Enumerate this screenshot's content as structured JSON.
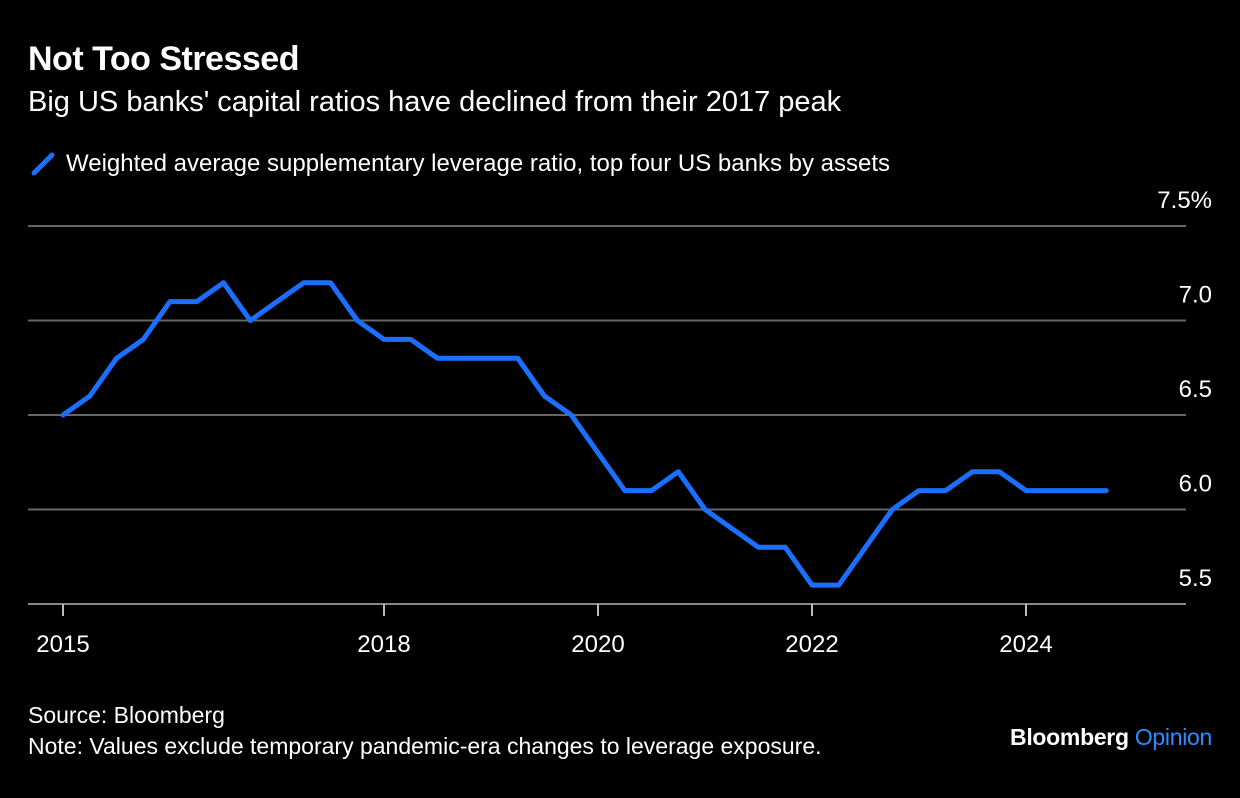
{
  "title": "Not Too Stressed",
  "subtitle": "Big US banks' capital ratios have declined from their 2017 peak",
  "footer": {
    "source": "Source: Bloomberg",
    "note": "Note: Values exclude temporary pandemic-era changes to leverage exposure."
  },
  "brand": {
    "name": "Bloomberg",
    "accent": "Opinion"
  },
  "colors": {
    "background": "#000000",
    "line": "#1a6fff",
    "grid": "#666666",
    "accent": "#2d8cff"
  },
  "chart_data": {
    "type": "line",
    "title": "Not Too Stressed",
    "subtitle": "Big US banks' capital ratios have declined from their 2017 peak",
    "legend_position": "top-left",
    "grid": true,
    "xlim": [
      2014.75,
      2025.75
    ],
    "ylim": [
      5.5,
      7.5
    ],
    "x_ticks": [
      {
        "value": 2015,
        "label": "2015"
      },
      {
        "value": 2018,
        "label": "2018"
      },
      {
        "value": 2020,
        "label": "2020"
      },
      {
        "value": 2022,
        "label": "2022"
      },
      {
        "value": 2024,
        "label": "2024"
      }
    ],
    "y_ticks": [
      {
        "value": 5.5,
        "label": "5.5"
      },
      {
        "value": 6.0,
        "label": "6.0"
      },
      {
        "value": 6.5,
        "label": "6.5"
      },
      {
        "value": 7.0,
        "label": "7.0"
      },
      {
        "value": 7.5,
        "label": "7.5%"
      }
    ],
    "series": [
      {
        "name": "Weighted average supplementary leverage ratio, top four US banks by assets",
        "x": [
          2015.0,
          2015.25,
          2015.5,
          2015.75,
          2016.0,
          2016.25,
          2016.5,
          2016.75,
          2017.0,
          2017.25,
          2017.5,
          2017.75,
          2018.0,
          2018.25,
          2018.5,
          2018.75,
          2019.0,
          2019.25,
          2019.5,
          2019.75,
          2020.0,
          2020.25,
          2020.5,
          2020.75,
          2021.0,
          2021.25,
          2021.5,
          2021.75,
          2022.0,
          2022.25,
          2022.5,
          2022.75,
          2023.0,
          2023.25,
          2023.5,
          2023.75,
          2024.0,
          2024.25,
          2024.5,
          2024.75
        ],
        "values": [
          6.5,
          6.6,
          6.8,
          6.9,
          7.1,
          7.1,
          7.2,
          7.0,
          7.1,
          7.2,
          7.2,
          7.0,
          6.9,
          6.9,
          6.8,
          6.8,
          6.8,
          6.8,
          6.6,
          6.5,
          6.3,
          6.1,
          6.1,
          6.2,
          6.0,
          5.9,
          5.8,
          5.8,
          5.6,
          5.6,
          5.8,
          6.0,
          6.1,
          6.1,
          6.2,
          6.2,
          6.1,
          6.1,
          6.1,
          6.1
        ]
      }
    ]
  }
}
